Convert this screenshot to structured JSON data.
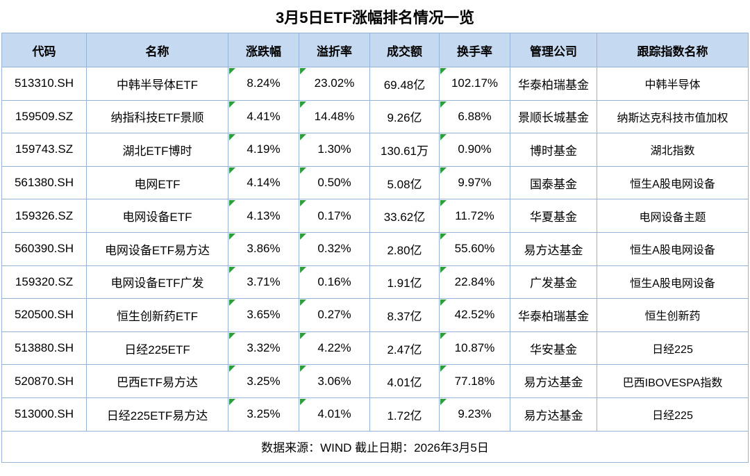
{
  "title": "3月5日ETF涨幅排名情况一览",
  "footer": {
    "source_note": "数据来源：WIND 截止日期：2026年3月5日"
  },
  "colors": {
    "header_bg": "#C5D9F1",
    "grid_border": "#95B3D7",
    "corner_flag_green": "#2E9E3C",
    "text": "#000000",
    "background": "#FFFFFF"
  },
  "chart_data": {
    "type": "table",
    "title": "3月5日ETF涨幅排名情况一览",
    "columns": [
      {
        "key": "code",
        "label": "代码"
      },
      {
        "key": "name",
        "label": "名称"
      },
      {
        "key": "change",
        "label": "涨跌幅"
      },
      {
        "key": "premium",
        "label": "溢折率"
      },
      {
        "key": "volume",
        "label": "成交额"
      },
      {
        "key": "turnover",
        "label": "换手率"
      },
      {
        "key": "company",
        "label": "管理公司"
      },
      {
        "key": "index",
        "label": "跟踪指数名称"
      }
    ],
    "flag_columns": [
      "change",
      "premium",
      "turnover"
    ],
    "rows": [
      {
        "code": "513310.SH",
        "name": "中韩半导体ETF",
        "change": "8.24%",
        "premium": "23.02%",
        "volume": "69.48亿",
        "turnover": "102.17%",
        "company": "华泰柏瑞基金",
        "index": "中韩半导体"
      },
      {
        "code": "159509.SZ",
        "name": "纳指科技ETF景顺",
        "change": "4.41%",
        "premium": "14.48%",
        "volume": "9.26亿",
        "turnover": "6.88%",
        "company": "景顺长城基金",
        "index": "纳斯达克科技市值加权"
      },
      {
        "code": "159743.SZ",
        "name": "湖北ETF博时",
        "change": "4.19%",
        "premium": "1.30%",
        "volume": "130.61万",
        "turnover": "0.90%",
        "company": "博时基金",
        "index": "湖北指数"
      },
      {
        "code": "561380.SH",
        "name": "电网ETF",
        "change": "4.14%",
        "premium": "0.50%",
        "volume": "5.08亿",
        "turnover": "9.97%",
        "company": "国泰基金",
        "index": "恒生A股电网设备"
      },
      {
        "code": "159326.SZ",
        "name": "电网设备ETF",
        "change": "4.13%",
        "premium": "0.17%",
        "volume": "33.62亿",
        "turnover": "11.72%",
        "company": "华夏基金",
        "index": "电网设备主题"
      },
      {
        "code": "560390.SH",
        "name": "电网设备ETF易方达",
        "change": "3.86%",
        "premium": "0.32%",
        "volume": "2.80亿",
        "turnover": "55.60%",
        "company": "易方达基金",
        "index": "恒生A股电网设备"
      },
      {
        "code": "159320.SZ",
        "name": "电网设备ETF广发",
        "change": "3.71%",
        "premium": "0.16%",
        "volume": "1.91亿",
        "turnover": "22.84%",
        "company": "广发基金",
        "index": "恒生A股电网设备"
      },
      {
        "code": "520500.SH",
        "name": "恒生创新药ETF",
        "change": "3.65%",
        "premium": "0.27%",
        "volume": "8.37亿",
        "turnover": "42.52%",
        "company": "华泰柏瑞基金",
        "index": "恒生创新药"
      },
      {
        "code": "513880.SH",
        "name": "日经225ETF",
        "change": "3.32%",
        "premium": "4.22%",
        "volume": "2.47亿",
        "turnover": "10.87%",
        "company": "华安基金",
        "index": "日经225"
      },
      {
        "code": "520870.SH",
        "name": "巴西ETF易方达",
        "change": "3.25%",
        "premium": "3.06%",
        "volume": "4.01亿",
        "turnover": "77.18%",
        "company": "易方达基金",
        "index": "巴西IBOVESPA指数"
      },
      {
        "code": "513000.SH",
        "name": "日经225ETF易方达",
        "change": "3.25%",
        "premium": "4.01%",
        "volume": "1.72亿",
        "turnover": "9.23%",
        "company": "易方达基金",
        "index": "日经225"
      }
    ],
    "source_note": "数据来源：WIND 截止日期：2026年3月5日"
  }
}
